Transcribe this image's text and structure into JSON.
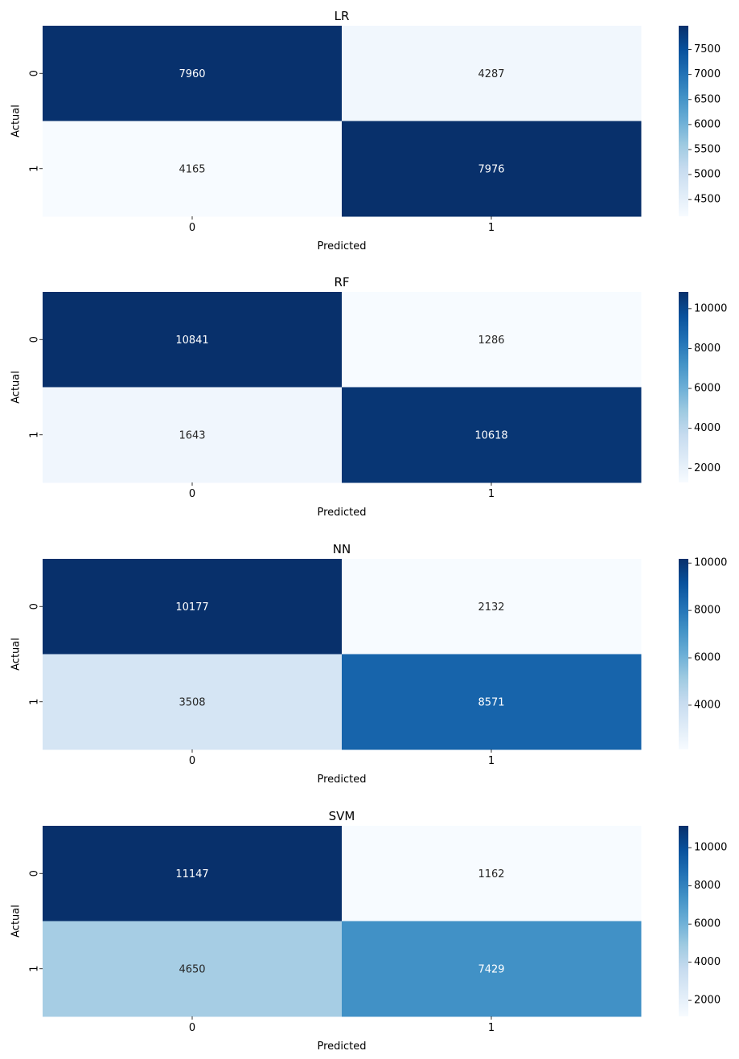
{
  "chart_data": [
    {
      "type": "heatmap",
      "title": "LR",
      "xlabel": "Predicted",
      "ylabel": "Actual",
      "x_categories": [
        "0",
        "1"
      ],
      "y_categories": [
        "0",
        "1"
      ],
      "values": [
        [
          7960,
          4287
        ],
        [
          4165,
          7976
        ]
      ],
      "colormap": "Blues",
      "colorbar": {
        "range": [
          4165,
          7976
        ],
        "ticks": [
          4500,
          5000,
          5500,
          6000,
          6500,
          7000,
          7500
        ]
      }
    },
    {
      "type": "heatmap",
      "title": "RF",
      "xlabel": "Predicted",
      "ylabel": "Actual",
      "x_categories": [
        "0",
        "1"
      ],
      "y_categories": [
        "0",
        "1"
      ],
      "values": [
        [
          10841,
          1286
        ],
        [
          1643,
          10618
        ]
      ],
      "colormap": "Blues",
      "colorbar": {
        "range": [
          1286,
          10841
        ],
        "ticks": [
          2000,
          4000,
          6000,
          8000,
          10000
        ]
      }
    },
    {
      "type": "heatmap",
      "title": "NN",
      "xlabel": "Predicted",
      "ylabel": "Actual",
      "x_categories": [
        "0",
        "1"
      ],
      "y_categories": [
        "0",
        "1"
      ],
      "values": [
        [
          10177,
          2132
        ],
        [
          3508,
          8571
        ]
      ],
      "colormap": "Blues",
      "colorbar": {
        "range": [
          2132,
          10177
        ],
        "ticks": [
          4000,
          6000,
          8000,
          10000
        ]
      }
    },
    {
      "type": "heatmap",
      "title": "SVM",
      "xlabel": "Predicted",
      "ylabel": "Actual",
      "x_categories": [
        "0",
        "1"
      ],
      "y_categories": [
        "0",
        "1"
      ],
      "values": [
        [
          11147,
          1162
        ],
        [
          4650,
          7429
        ]
      ],
      "colormap": "Blues",
      "colorbar": {
        "range": [
          1162,
          11147
        ],
        "ticks": [
          2000,
          4000,
          6000,
          8000,
          10000
        ]
      }
    }
  ]
}
